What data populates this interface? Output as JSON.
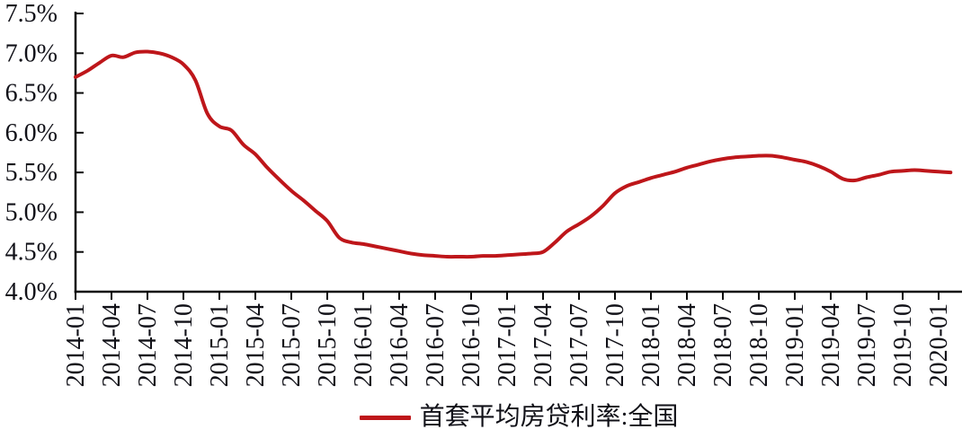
{
  "chart_data": {
    "type": "line",
    "title": "",
    "x_tick_labels": [
      "2014-01",
      "2014-04",
      "2014-07",
      "2014-10",
      "2015-01",
      "2015-04",
      "2015-07",
      "2015-10",
      "2016-01",
      "2016-04",
      "2016-07",
      "2016-10",
      "2017-01",
      "2017-04",
      "2017-07",
      "2017-10",
      "2018-01",
      "2018-04",
      "2018-07",
      "2018-10",
      "2019-01",
      "2019-04",
      "2019-07",
      "2019-10",
      "2020-01"
    ],
    "y_tick_labels": [
      "7.5%",
      "7.0%",
      "6.5%",
      "6.0%",
      "5.5%",
      "5.0%",
      "4.5%",
      "4.0%"
    ],
    "ylim": [
      4.0,
      7.5
    ],
    "y_tick_step": 0.5,
    "x_tick_interval_months": 3,
    "grid": false,
    "axis_color": "#0a0a0a",
    "text_color": "#111118",
    "background": "#FFFFFF",
    "legend": {
      "label": "首套平均房贷利率:全国",
      "position": "bottom"
    },
    "series": [
      {
        "name": "首套平均房贷利率:全国",
        "color": "#BE161A",
        "x": [
          "2014-01",
          "2014-02",
          "2014-03",
          "2014-04",
          "2014-05",
          "2014-06",
          "2014-07",
          "2014-08",
          "2014-09",
          "2014-10",
          "2014-11",
          "2014-12",
          "2015-01",
          "2015-02",
          "2015-03",
          "2015-04",
          "2015-05",
          "2015-06",
          "2015-07",
          "2015-08",
          "2015-09",
          "2015-10",
          "2015-11",
          "2015-12",
          "2016-01",
          "2016-02",
          "2016-03",
          "2016-04",
          "2016-05",
          "2016-06",
          "2016-07",
          "2016-08",
          "2016-09",
          "2016-10",
          "2016-11",
          "2016-12",
          "2017-01",
          "2017-02",
          "2017-03",
          "2017-04",
          "2017-05",
          "2017-06",
          "2017-07",
          "2017-08",
          "2017-09",
          "2017-10",
          "2017-11",
          "2017-12",
          "2018-01",
          "2018-02",
          "2018-03",
          "2018-04",
          "2018-05",
          "2018-06",
          "2018-07",
          "2018-08",
          "2018-09",
          "2018-10",
          "2018-11",
          "2018-12",
          "2019-01",
          "2019-02",
          "2019-03",
          "2019-04",
          "2019-05",
          "2019-06",
          "2019-07",
          "2019-08",
          "2019-09",
          "2019-10",
          "2019-11",
          "2019-12",
          "2020-01",
          "2020-02"
        ],
        "values": [
          6.7,
          6.78,
          6.88,
          6.97,
          6.95,
          7.01,
          7.02,
          7.0,
          6.95,
          6.86,
          6.66,
          6.24,
          6.08,
          6.03,
          5.85,
          5.73,
          5.56,
          5.41,
          5.27,
          5.15,
          5.02,
          4.89,
          4.68,
          4.62,
          4.6,
          4.57,
          4.54,
          4.51,
          4.48,
          4.46,
          4.45,
          4.44,
          4.44,
          4.44,
          4.45,
          4.45,
          4.46,
          4.47,
          4.48,
          4.5,
          4.62,
          4.76,
          4.85,
          4.95,
          5.08,
          5.24,
          5.33,
          5.38,
          5.43,
          5.47,
          5.51,
          5.56,
          5.6,
          5.64,
          5.67,
          5.69,
          5.7,
          5.71,
          5.71,
          5.69,
          5.66,
          5.63,
          5.58,
          5.51,
          5.42,
          5.4,
          5.44,
          5.47,
          5.51,
          5.52,
          5.53,
          5.52,
          5.51,
          5.5
        ]
      }
    ]
  }
}
